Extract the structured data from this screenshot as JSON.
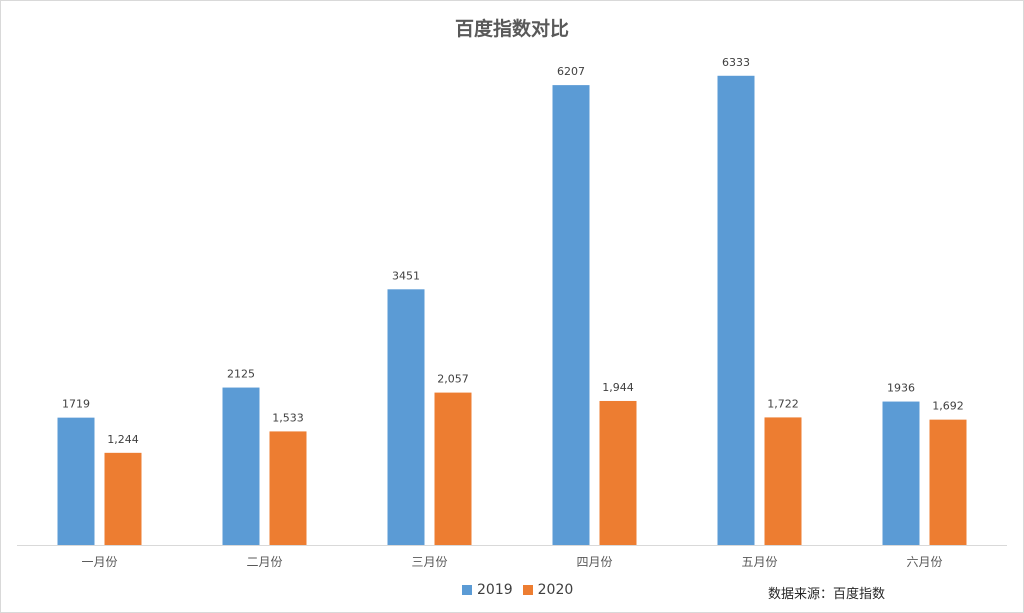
{
  "chart_data": {
    "type": "bar",
    "title": "百度指数对比",
    "xlabel": "",
    "ylabel": "",
    "categories": [
      "一月份",
      "二月份",
      "三月份",
      "四月份",
      "五月份",
      "六月份"
    ],
    "series": [
      {
        "name": "2019",
        "color": "#5B9BD5",
        "values": [
          1719,
          2125,
          3451,
          6207,
          6333,
          1936
        ],
        "labels": [
          "1719",
          "2125",
          "3451",
          "6207",
          "6333",
          "1936"
        ]
      },
      {
        "name": "2020",
        "color": "#ED7D31",
        "values": [
          1244,
          1533,
          2057,
          1944,
          1722,
          1692
        ],
        "labels": [
          "1,244",
          "1,533",
          "2,057",
          "1,944",
          "1,722",
          "1,692"
        ]
      }
    ],
    "ylim": [
      0,
      6600
    ],
    "grid": false,
    "legend_position": "bottom"
  },
  "source_note": "数据来源：百度指数"
}
